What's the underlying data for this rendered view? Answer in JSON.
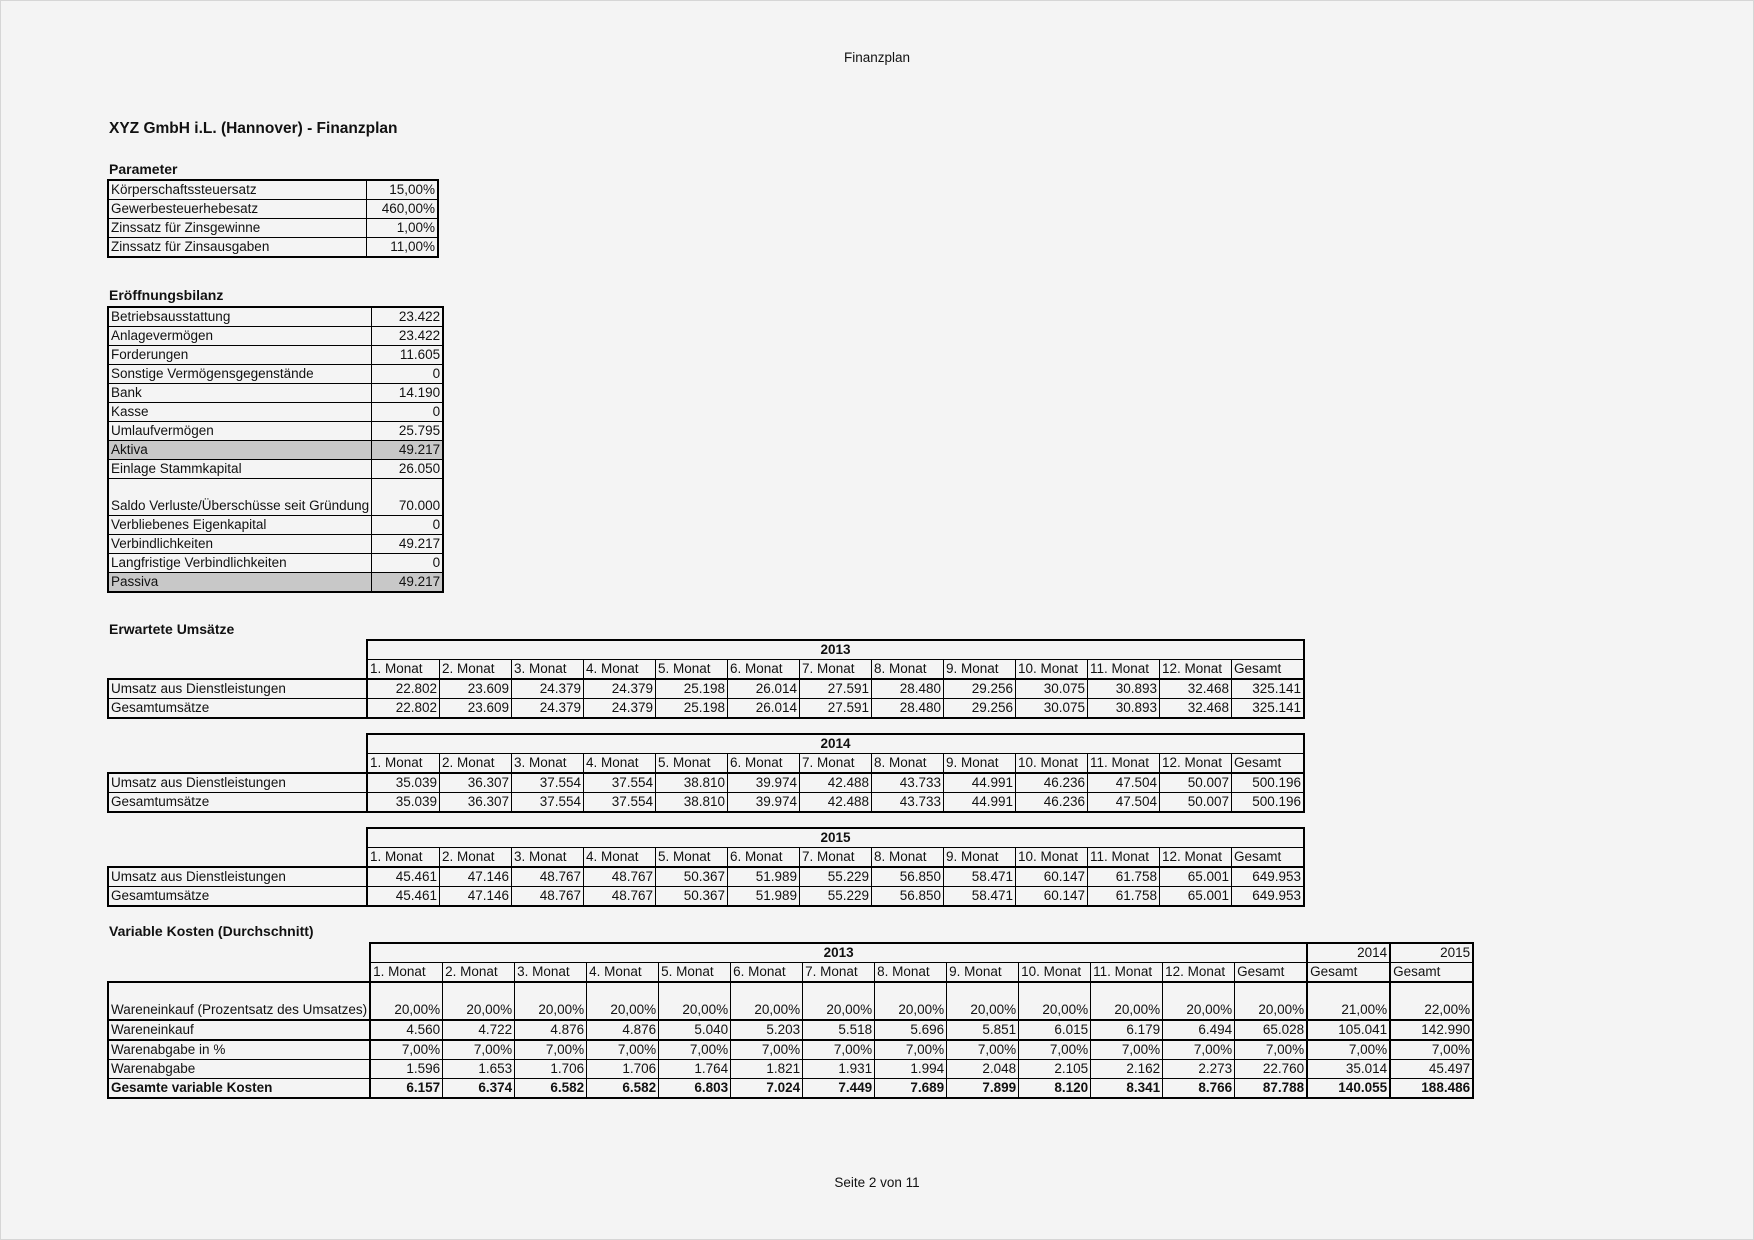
{
  "header": "Finanzplan",
  "footer": "Seite 2 von 11",
  "title": "XYZ GmbH i.L. (Hannover)  - Finanzplan",
  "parameter": {
    "heading": "Parameter",
    "rows": [
      [
        "Körperschaftssteuersatz",
        "15,00%"
      ],
      [
        "Gewerbesteuerhebesatz",
        "460,00%"
      ],
      [
        "Zinssatz für Zinsgewinne",
        "1,00%"
      ],
      [
        "Zinssatz für Zinsausgaben",
        "11,00%"
      ]
    ]
  },
  "bilanz": {
    "heading": "Eröffnungsbilanz",
    "rows": [
      [
        "Betriebsausstattung",
        "23.422"
      ],
      [
        "Anlagevermögen",
        "23.422"
      ],
      [
        "Forderungen",
        "11.605"
      ],
      [
        "Sonstige Vermögensgegenstände",
        "0"
      ],
      [
        "Bank",
        "14.190"
      ],
      [
        "Kasse",
        "0"
      ],
      [
        "Umlaufvermögen",
        "25.795"
      ],
      [
        "Aktiva",
        "49.217"
      ],
      [
        "Einlage Stammkapital",
        "26.050"
      ],
      [
        "Saldo Verluste/Überschüsse seit Gründung",
        "70.000"
      ],
      [
        "Verbliebenes Eigenkapital",
        "0"
      ],
      [
        "Verbindlichkeiten",
        "49.217"
      ],
      [
        "Langfristige Verbindlichkeiten",
        "0"
      ],
      [
        "Passiva",
        "49.217"
      ]
    ],
    "highlight_color": "#c8c8c8"
  },
  "months": [
    "1. Monat",
    "2. Monat",
    "3. Monat",
    "4. Monat",
    "5. Monat",
    "6. Monat",
    "7. Monat",
    "8. Monat",
    "9. Monat",
    "10. Monat",
    "11. Monat",
    "12. Monat",
    "Gesamt"
  ],
  "umsaetze": {
    "heading": "Erwartete Umsätze",
    "years": [
      {
        "year": "2013",
        "rows": [
          [
            "Umsatz aus Dienstleistungen",
            "22.802",
            "23.609",
            "24.379",
            "24.379",
            "25.198",
            "26.014",
            "27.591",
            "28.480",
            "29.256",
            "30.075",
            "30.893",
            "32.468",
            "325.141"
          ],
          [
            "Gesamtumsätze",
            "22.802",
            "23.609",
            "24.379",
            "24.379",
            "25.198",
            "26.014",
            "27.591",
            "28.480",
            "29.256",
            "30.075",
            "30.893",
            "32.468",
            "325.141"
          ]
        ]
      },
      {
        "year": "2014",
        "rows": [
          [
            "Umsatz aus Dienstleistungen",
            "35.039",
            "36.307",
            "37.554",
            "37.554",
            "38.810",
            "39.974",
            "42.488",
            "43.733",
            "44.991",
            "46.236",
            "47.504",
            "50.007",
            "500.196"
          ],
          [
            "Gesamtumsätze",
            "35.039",
            "36.307",
            "37.554",
            "37.554",
            "38.810",
            "39.974",
            "42.488",
            "43.733",
            "44.991",
            "46.236",
            "47.504",
            "50.007",
            "500.196"
          ]
        ]
      },
      {
        "year": "2015",
        "rows": [
          [
            "Umsatz aus Dienstleistungen",
            "45.461",
            "47.146",
            "48.767",
            "48.767",
            "50.367",
            "51.989",
            "55.229",
            "56.850",
            "58.471",
            "60.147",
            "61.758",
            "65.001",
            "649.953"
          ],
          [
            "Gesamtumsätze",
            "45.461",
            "47.146",
            "48.767",
            "48.767",
            "50.367",
            "51.989",
            "55.229",
            "56.850",
            "58.471",
            "60.147",
            "61.758",
            "65.001",
            "649.953"
          ]
        ]
      }
    ]
  },
  "variable": {
    "heading": "Variable Kosten (Durchschnitt)",
    "year": "2013",
    "extra_years": [
      "2014",
      "2015"
    ],
    "extra_header": [
      "Gesamt",
      "Gesamt"
    ],
    "rows": [
      [
        "Wareneinkauf (Prozentsatz des Umsatzes)",
        "20,00%",
        "20,00%",
        "20,00%",
        "20,00%",
        "20,00%",
        "20,00%",
        "20,00%",
        "20,00%",
        "20,00%",
        "20,00%",
        "20,00%",
        "20,00%",
        "20,00%",
        "21,00%",
        "22,00%"
      ],
      [
        "Wareneinkauf",
        "4.560",
        "4.722",
        "4.876",
        "4.876",
        "5.040",
        "5.203",
        "5.518",
        "5.696",
        "5.851",
        "6.015",
        "6.179",
        "6.494",
        "65.028",
        "105.041",
        "142.990"
      ],
      [
        "Warenabgabe in %",
        "7,00%",
        "7,00%",
        "7,00%",
        "7,00%",
        "7,00%",
        "7,00%",
        "7,00%",
        "7,00%",
        "7,00%",
        "7,00%",
        "7,00%",
        "7,00%",
        "7,00%",
        "7,00%",
        "7,00%"
      ],
      [
        "Warenabgabe",
        "1.596",
        "1.653",
        "1.706",
        "1.706",
        "1.764",
        "1.821",
        "1.931",
        "1.994",
        "2.048",
        "2.105",
        "2.162",
        "2.273",
        "22.760",
        "35.014",
        "45.497"
      ],
      [
        "Gesamte variable Kosten",
        "6.157",
        "6.374",
        "6.582",
        "6.582",
        "6.803",
        "7.024",
        "7.449",
        "7.689",
        "7.899",
        "8.120",
        "8.341",
        "8.766",
        "87.788",
        "140.055",
        "188.486"
      ]
    ]
  }
}
